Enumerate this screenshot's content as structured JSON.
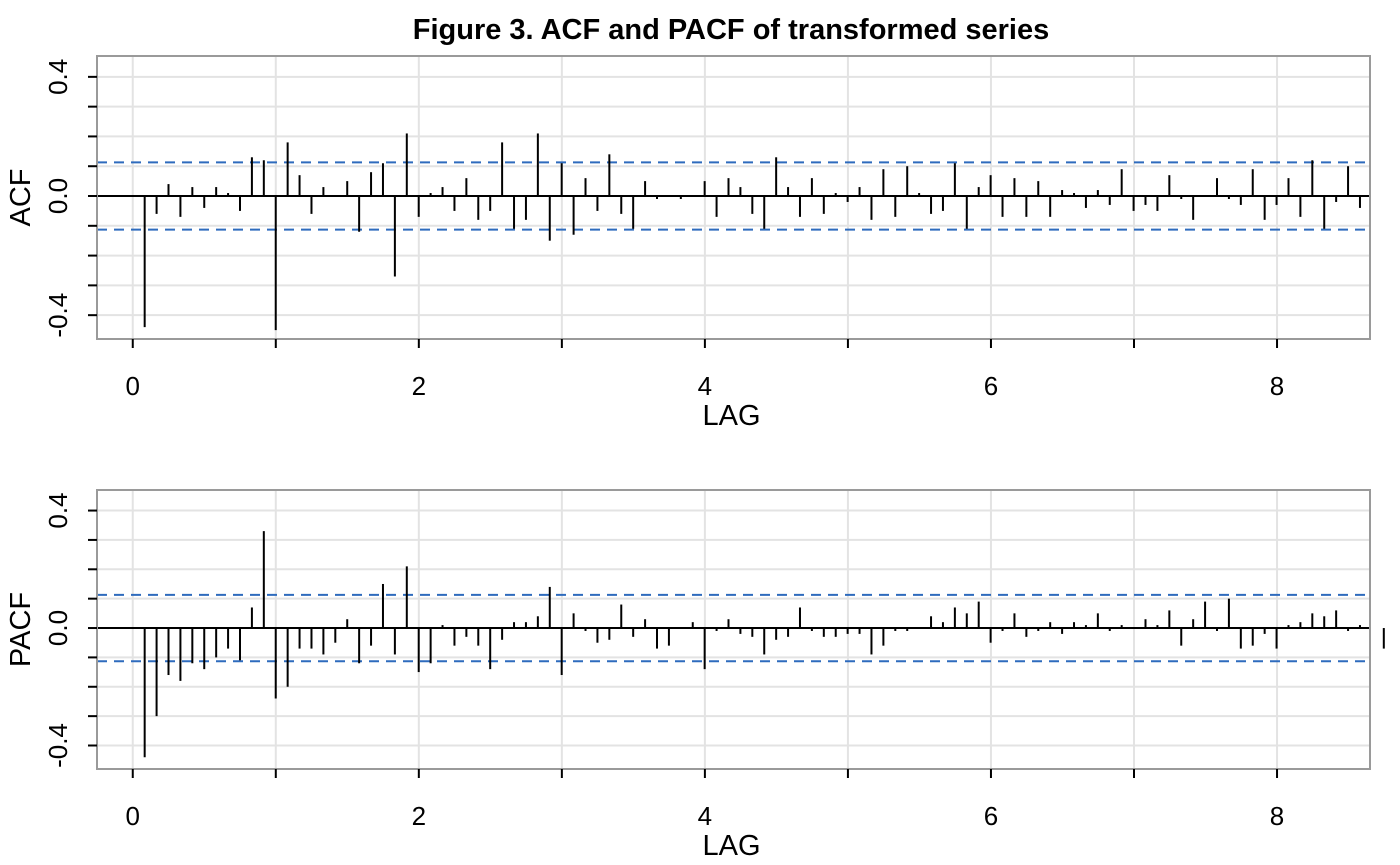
{
  "chart_data": [
    {
      "type": "bar",
      "title": "Figure 3. ACF and PACF of transformed series",
      "ylabel": "ACF",
      "xlabel": "LAG",
      "xlim": [
        -0.25,
        8.65
      ],
      "ylim": [
        -0.48,
        0.47
      ],
      "xticks": [
        0,
        2,
        4,
        6,
        8
      ],
      "yticks": [
        -0.4,
        0.0,
        0.4
      ],
      "conf_band": 0.113,
      "lag_step": 0.0833,
      "grid": true,
      "values": [
        -0.44,
        -0.06,
        0.04,
        -0.07,
        0.03,
        -0.04,
        0.03,
        0.01,
        -0.05,
        0.13,
        0.12,
        -0.45,
        0.18,
        0.07,
        -0.06,
        0.03,
        0.0,
        0.05,
        -0.12,
        0.08,
        0.11,
        -0.27,
        0.21,
        -0.07,
        0.01,
        0.03,
        -0.05,
        0.06,
        -0.08,
        -0.05,
        0.18,
        -0.11,
        -0.08,
        0.21,
        -0.15,
        0.11,
        -0.13,
        0.06,
        -0.05,
        0.14,
        -0.06,
        -0.11,
        0.05,
        -0.01,
        0.0,
        -0.01,
        0.0,
        0.05,
        -0.07,
        0.06,
        0.03,
        -0.06,
        -0.11,
        0.13,
        0.03,
        -0.07,
        0.06,
        -0.06,
        0.01,
        -0.02,
        0.03,
        -0.08,
        0.09,
        -0.07,
        0.1,
        0.01,
        -0.06,
        -0.05,
        0.11,
        -0.11,
        0.03,
        0.07,
        -0.07,
        0.06,
        -0.07,
        0.05,
        -0.07,
        0.02,
        0.01,
        -0.04,
        0.02,
        -0.03,
        0.09,
        -0.05,
        -0.03,
        -0.05,
        0.07,
        -0.01,
        -0.08,
        0.0,
        0.06,
        -0.01,
        -0.03,
        0.09,
        -0.08,
        -0.03,
        0.06,
        -0.07,
        0.12,
        -0.11,
        -0.02,
        0.1,
        -0.04
      ]
    },
    {
      "type": "bar",
      "ylabel": "PACF",
      "xlabel": "LAG",
      "xlim": [
        -0.25,
        8.65
      ],
      "ylim": [
        -0.48,
        0.47
      ],
      "xticks": [
        0,
        2,
        4,
        6,
        8
      ],
      "yticks": [
        -0.4,
        0.0,
        0.4
      ],
      "conf_band": 0.113,
      "lag_step": 0.0833,
      "grid": true,
      "values": [
        -0.44,
        -0.3,
        -0.16,
        -0.18,
        -0.12,
        -0.14,
        -0.1,
        -0.07,
        -0.11,
        0.07,
        0.33,
        -0.24,
        -0.2,
        -0.07,
        -0.07,
        -0.09,
        -0.05,
        0.03,
        -0.12,
        -0.06,
        0.15,
        -0.09,
        0.21,
        -0.15,
        -0.12,
        0.01,
        -0.06,
        -0.03,
        -0.06,
        -0.14,
        -0.04,
        0.02,
        0.02,
        0.04,
        0.14,
        -0.16,
        0.05,
        -0.01,
        -0.05,
        -0.04,
        0.08,
        -0.03,
        0.03,
        -0.07,
        -0.06,
        0.0,
        0.02,
        -0.14,
        -0.01,
        0.03,
        -0.02,
        -0.03,
        -0.09,
        -0.04,
        -0.03,
        0.07,
        -0.01,
        -0.03,
        -0.03,
        -0.02,
        -0.02,
        -0.09,
        -0.06,
        -0.01,
        -0.01,
        0.0,
        0.04,
        0.02,
        0.07,
        0.05,
        0.09,
        -0.05,
        -0.01,
        0.05,
        -0.03,
        -0.01,
        0.02,
        -0.02,
        0.02,
        0.01,
        0.05,
        -0.01,
        0.01,
        0.0,
        0.03,
        0.01,
        0.06,
        -0.06,
        0.03,
        0.09,
        -0.01,
        0.1,
        -0.07,
        -0.06,
        -0.02,
        -0.07,
        0.01,
        0.02,
        0.05,
        0.04,
        0.06,
        -0.01,
        0.01,
        0.0,
        -0.07
      ]
    }
  ]
}
